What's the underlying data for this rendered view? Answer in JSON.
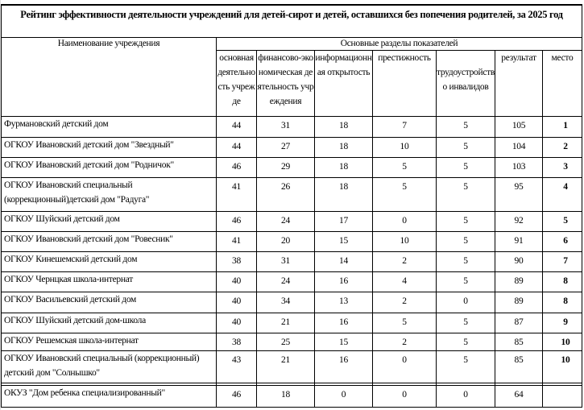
{
  "title": "Рейтинг эффективности деятельности  учреждений для детей-сирот и детей, оставшихся без попечения родителей, за 2025 год",
  "header": {
    "name_col": "Наименование учреждения",
    "group": "Основные разделы показателей",
    "columns": [
      "основная деятельность учрежде",
      "финансово-экономическая деятельность учреждения",
      "информационная открытость",
      "престижность",
      "трудоустройство инвалидов",
      "результат",
      "место"
    ]
  },
  "rows": [
    {
      "name": "Фурмановский детский дом",
      "values": [
        "44",
        "31",
        "18",
        "7",
        "5",
        "105"
      ],
      "place": "1"
    },
    {
      "name": " ОГКОУ Ивановский детский дом \"Звездный\"",
      "values": [
        "44",
        "27",
        "18",
        "10",
        "5",
        "104"
      ],
      "place": "2"
    },
    {
      "name": "ОГКОУ Ивановский детский дом \"Родничок\"",
      "values": [
        "46",
        "29",
        "18",
        "5",
        "5",
        "103"
      ],
      "place": "3"
    },
    {
      "name": "ОГКОУ Ивановский специальный (коррекционный)детский дом \"Радуга\"",
      "values": [
        "41",
        "26",
        "18",
        "5",
        "5",
        "95"
      ],
      "place": "4"
    },
    {
      "name": "ОГКОУ Шуйский детский дом",
      "values": [
        "46",
        "24",
        "17",
        "0",
        "5",
        "92"
      ],
      "place": "5"
    },
    {
      "name": "ОГКОУ Ивановский детский дом \"Ровесник\"",
      "values": [
        "41",
        "20",
        "15",
        "10",
        "5",
        "91"
      ],
      "place": "6"
    },
    {
      "name": "ОГКОУ Кинешемский детский дом",
      "values": [
        "38",
        "31",
        "14",
        "2",
        "5",
        "90"
      ],
      "place": "7"
    },
    {
      "name": " ОГКОУ Чернцкая школа-интернат",
      "values": [
        "40",
        "24",
        "16",
        "4",
        "5",
        "89"
      ],
      "place": "8"
    },
    {
      "name": "ОГКОУ Васильевский детский дом",
      "values": [
        "40",
        "34",
        "13",
        "2",
        "0",
        "89"
      ],
      "place": "8"
    },
    {
      "name": "ОГКОУ Шуйский детский дом-школа",
      "values": [
        "40",
        "21",
        "16",
        "5",
        "5",
        "87"
      ],
      "place": "9"
    },
    {
      "name": "ОГКОУ Решемская  школа-интернат",
      "values": [
        "38",
        "25",
        "15",
        "2",
        "5",
        "85"
      ],
      "place": "10"
    },
    {
      "name": "ОГКОУ Ивановский специальный (коррекционный) детский дом \"Солнышко\"",
      "values": [
        "43",
        "21",
        "16",
        "0",
        "5",
        "85"
      ],
      "place": "10"
    },
    {
      "name": " ОКУЗ \"Дом ребенка специализированный\"",
      "values": [
        "46",
        "18",
        "0",
        "0",
        "0",
        "64"
      ],
      "place": ""
    }
  ]
}
